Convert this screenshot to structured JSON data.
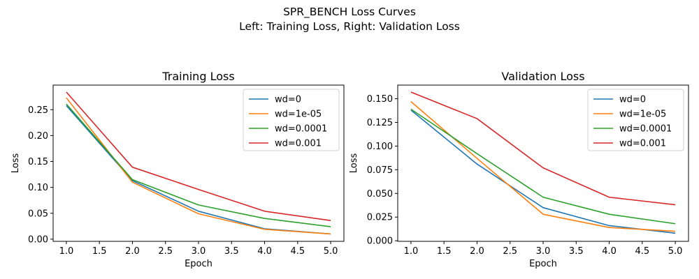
{
  "figure": {
    "suptitle_lines": [
      "SPR_BENCH Loss Curves",
      "Left: Training Loss, Right: Validation Loss"
    ]
  },
  "chart_data": [
    {
      "type": "line",
      "title": "Training Loss",
      "xlabel": "Epoch",
      "ylabel": "Loss",
      "xlim": [
        0.8,
        5.2
      ],
      "ylim": [
        -0.0042,
        0.2975
      ],
      "xticks": [
        1.0,
        1.5,
        2.0,
        2.5,
        3.0,
        3.5,
        4.0,
        4.5,
        5.0
      ],
      "xtick_labels": [
        "1.0",
        "1.5",
        "2.0",
        "2.5",
        "3.0",
        "3.5",
        "4.0",
        "4.5",
        "5.0"
      ],
      "yticks": [
        0.0,
        0.05,
        0.1,
        0.15,
        0.2,
        0.25
      ],
      "ytick_labels": [
        "0.00",
        "0.05",
        "0.10",
        "0.15",
        "0.20",
        "0.25"
      ],
      "grid": false,
      "legend": "top-right",
      "x": [
        1,
        2,
        3,
        4,
        5
      ],
      "series": [
        {
          "name": "wd=0",
          "color": "#1f77b4",
          "values": [
            0.258,
            0.113,
            0.054,
            0.02,
            0.01
          ]
        },
        {
          "name": "wd=1e-05",
          "color": "#ff7f0e",
          "values": [
            0.273,
            0.11,
            0.049,
            0.019,
            0.01
          ]
        },
        {
          "name": "wd=0.0001",
          "color": "#2ca02c",
          "values": [
            0.261,
            0.115,
            0.066,
            0.04,
            0.024
          ]
        },
        {
          "name": "wd=0.001",
          "color": "#d62728",
          "values": [
            0.284,
            0.139,
            0.096,
            0.054,
            0.036
          ]
        }
      ]
    },
    {
      "type": "line",
      "title": "Validation Loss",
      "xlabel": "Epoch",
      "ylabel": "Loss",
      "xlim": [
        0.8,
        5.2
      ],
      "ylim": [
        -0.0006,
        0.1644
      ],
      "xticks": [
        1.0,
        1.5,
        2.0,
        2.5,
        3.0,
        3.5,
        4.0,
        4.5,
        5.0
      ],
      "xtick_labels": [
        "1.0",
        "1.5",
        "2.0",
        "2.5",
        "3.0",
        "3.5",
        "4.0",
        "4.5",
        "5.0"
      ],
      "yticks": [
        0.0,
        0.025,
        0.05,
        0.075,
        0.1,
        0.125,
        0.15
      ],
      "ytick_labels": [
        "0.000",
        "0.025",
        "0.050",
        "0.075",
        "0.100",
        "0.125",
        "0.150"
      ],
      "grid": false,
      "legend": "top-right",
      "x": [
        1,
        2,
        3,
        4,
        5
      ],
      "series": [
        {
          "name": "wd=0",
          "color": "#1f77b4",
          "values": [
            0.138,
            0.081,
            0.035,
            0.016,
            0.008
          ]
        },
        {
          "name": "wd=1e-05",
          "color": "#ff7f0e",
          "values": [
            0.147,
            0.087,
            0.028,
            0.014,
            0.01
          ]
        },
        {
          "name": "wd=0.0001",
          "color": "#2ca02c",
          "values": [
            0.139,
            0.092,
            0.046,
            0.028,
            0.018
          ]
        },
        {
          "name": "wd=0.001",
          "color": "#d62728",
          "values": [
            0.157,
            0.129,
            0.077,
            0.046,
            0.038
          ]
        }
      ]
    }
  ]
}
